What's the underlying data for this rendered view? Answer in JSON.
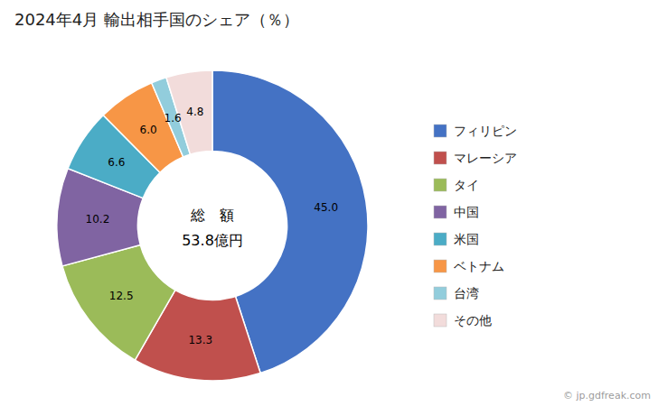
{
  "chart_data": {
    "type": "donut",
    "title": "2024年4月 輸出相手国のシェア（％）",
    "categories": [
      "フィリピン",
      "マレーシア",
      "タイ",
      "中国",
      "米国",
      "ベトナム",
      "台湾",
      "その他"
    ],
    "values": [
      45.0,
      13.3,
      12.5,
      10.2,
      6.6,
      6.0,
      1.6,
      4.8
    ],
    "value_labels": [
      "45.0",
      "13.3",
      "12.5",
      "10.2",
      "6.6",
      "6.0",
      "1.6",
      "4.8"
    ],
    "colors": [
      "#4472C4",
      "#C0504D",
      "#9BBB59",
      "#8064A2",
      "#4BACC6",
      "#F79646",
      "#92CDDC",
      "#F2DCDB"
    ],
    "annotations": [
      "総　額",
      "53.8億円",
      "© jp.gdfreak.com"
    ],
    "data_labels": true,
    "legend": "right"
  }
}
